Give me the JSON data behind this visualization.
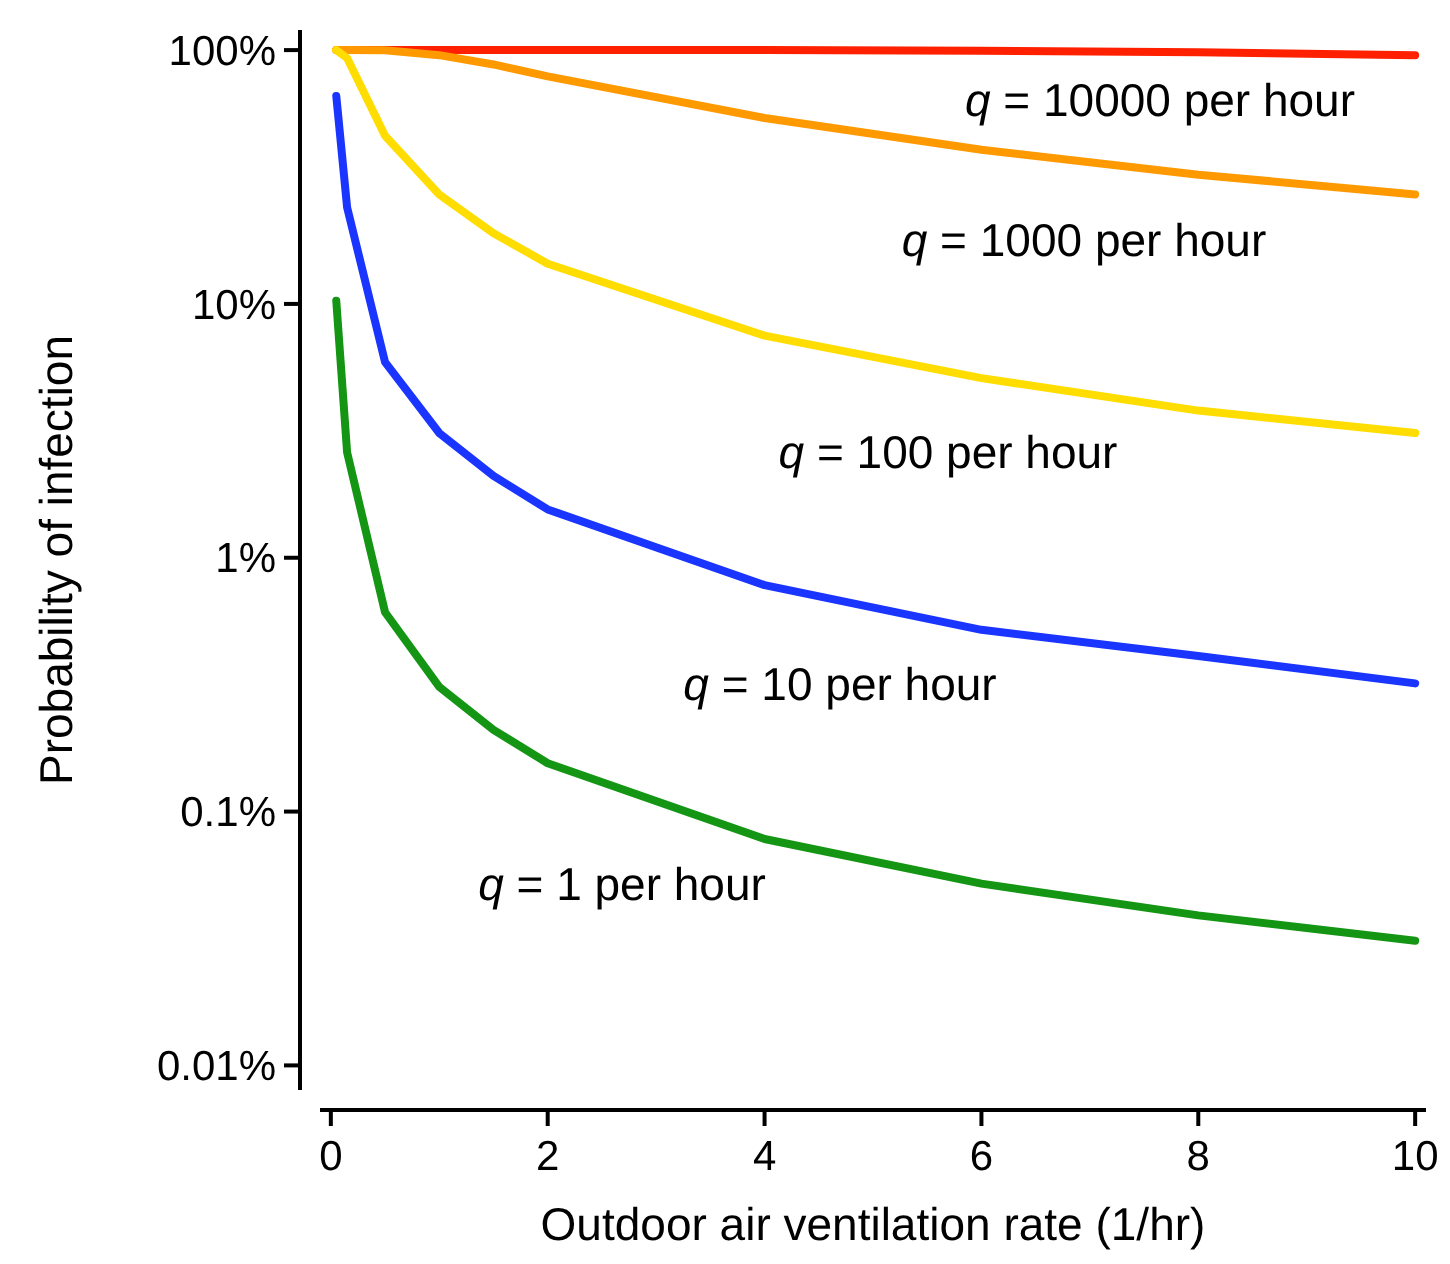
{
  "chart_data": {
    "type": "line",
    "xlabel": "Outdoor air ventilation rate (1/hr)",
    "ylabel": "Probability of infection",
    "log": "y",
    "x": [
      0.05,
      0.15,
      0.5,
      1,
      1.5,
      2,
      4,
      6,
      8,
      10
    ],
    "xlim": [
      -0.1,
      10.1
    ],
    "xticks": [
      0,
      2,
      4,
      6,
      8,
      10
    ],
    "ylim": [
      0.008,
      120
    ],
    "yticks": [
      {
        "value": 0.01,
        "label": "0.01%"
      },
      {
        "value": 0.1,
        "label": "0.1%"
      },
      {
        "value": 1,
        "label": "1%"
      },
      {
        "value": 10,
        "label": "10%"
      },
      {
        "value": 100,
        "label": "100%"
      }
    ],
    "grid": false,
    "marker": "none",
    "line_style": "solid",
    "series": [
      {
        "name": "q = 10000 per hour",
        "color": "#ff2000",
        "values": [
          100,
          100,
          100,
          100,
          100,
          100,
          100,
          99.4,
          98,
          95.5
        ]
      },
      {
        "name": "q = 1000 per hour",
        "color": "#ff9900",
        "values": [
          100,
          100,
          99.8,
          95.5,
          87.8,
          78.8,
          54,
          40.5,
          32.3,
          27
        ]
      },
      {
        "name": "q = 100 per hour",
        "color": "#ffdd00",
        "values": [
          100,
          93,
          46,
          27,
          19,
          14.4,
          7.5,
          5.1,
          3.8,
          3.1
        ]
      },
      {
        "name": "q = 10 per hour",
        "color": "#1a35ff",
        "values": [
          66,
          24,
          5.9,
          3.1,
          2.1,
          1.55,
          0.78,
          0.52,
          0.41,
          0.32
        ]
      },
      {
        "name": "q = 1 per hour",
        "color": "#149614",
        "values": [
          10.3,
          2.6,
          0.61,
          0.31,
          0.21,
          0.155,
          0.078,
          0.052,
          0.039,
          0.031
        ]
      }
    ]
  }
}
